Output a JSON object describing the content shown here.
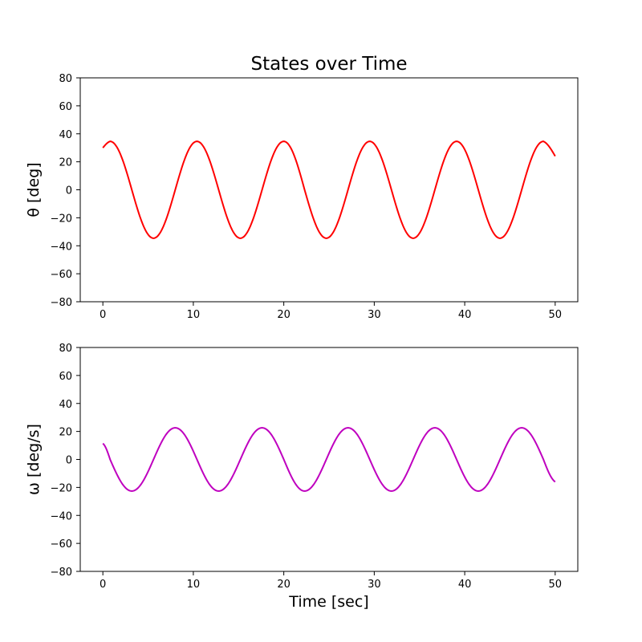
{
  "title": "States over Time",
  "chart_data": [
    {
      "type": "line",
      "title": "States over Time",
      "xlabel": "",
      "ylabel": "θ [deg]",
      "xlim": [
        -2.5,
        52.5
      ],
      "ylim": [
        -80,
        80
      ],
      "xticks": [
        0,
        10,
        20,
        30,
        40,
        50
      ],
      "yticks": [
        -80,
        -60,
        -40,
        -20,
        0,
        20,
        40,
        60,
        80
      ],
      "grid": false,
      "series": [
        {
          "color": "#ff0000",
          "x": [
            0,
            0.8,
            3.2,
            5.6,
            8.0,
            10.4,
            12.8,
            15.2,
            17.6,
            20.0,
            22.3,
            24.7,
            27.1,
            29.5,
            31.9,
            34.3,
            36.7,
            39.1,
            41.5,
            43.9,
            46.3,
            48.7,
            50
          ],
          "y": [
            30,
            34.6,
            0,
            -34.6,
            0,
            34.6,
            0,
            -34.6,
            0,
            34.6,
            0,
            -34.6,
            0,
            34.6,
            0,
            -34.6,
            0,
            34.6,
            0,
            -34.6,
            0,
            34.6,
            24
          ]
        }
      ]
    },
    {
      "type": "line",
      "title": "",
      "xlabel": "Time [sec]",
      "ylabel": "ω [deg/s]",
      "xlim": [
        -2.5,
        52.5
      ],
      "ylim": [
        -80,
        80
      ],
      "xticks": [
        0,
        10,
        20,
        30,
        40,
        50
      ],
      "yticks": [
        -80,
        -60,
        -40,
        -20,
        0,
        20,
        40,
        60,
        80
      ],
      "grid": false,
      "series": [
        {
          "color": "#bf00bf",
          "x": [
            0,
            0.8,
            3.2,
            5.6,
            8.0,
            10.4,
            12.8,
            15.2,
            17.6,
            20.0,
            22.3,
            24.7,
            27.1,
            29.5,
            31.9,
            34.3,
            36.7,
            39.1,
            41.5,
            43.9,
            46.3,
            48.7,
            50
          ],
          "y": [
            11.4,
            0,
            -22.6,
            0,
            22.6,
            0,
            -22.6,
            0,
            22.6,
            0,
            -22.6,
            0,
            22.6,
            0,
            -22.6,
            0,
            22.6,
            0,
            -22.6,
            0,
            22.6,
            0,
            -16
          ]
        }
      ]
    }
  ]
}
